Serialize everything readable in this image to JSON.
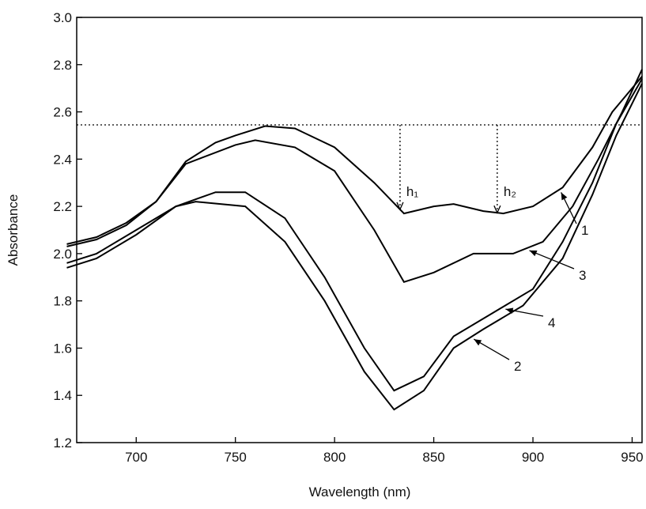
{
  "chart_data": {
    "type": "line",
    "x_label": "Wavelength (nm)",
    "y_label": "Absorbance",
    "xlim": [
      670,
      955
    ],
    "ylim": [
      1.2,
      3.0
    ],
    "xticks": [
      700,
      750,
      800,
      850,
      900,
      950
    ],
    "yticks": [
      1.2,
      1.4,
      1.6,
      1.8,
      {
        "value": 2.0,
        "label": "2.0"
      },
      2.2,
      2.4,
      2.6,
      2.8,
      {
        "value": 3.0,
        "label": "3.0"
      }
    ],
    "reference_line": 2.545,
    "annotations": [
      {
        "text": "h₁",
        "x": 833
      },
      {
        "text": "h₂",
        "x": 882
      }
    ],
    "series": [
      {
        "name": "1",
        "color": "#000000",
        "x": [
          665,
          680,
          695,
          710,
          725,
          740,
          750,
          765,
          780,
          800,
          820,
          835,
          850,
          860,
          875,
          885,
          900,
          915,
          930,
          940,
          955
        ],
        "values": [
          2.04,
          2.07,
          2.13,
          2.22,
          2.39,
          2.47,
          2.5,
          2.54,
          2.53,
          2.45,
          2.3,
          2.17,
          2.2,
          2.21,
          2.18,
          2.17,
          2.2,
          2.28,
          2.45,
          2.6,
          2.75
        ]
      },
      {
        "name": "2",
        "color": "#000000",
        "x": [
          665,
          680,
          700,
          720,
          730,
          755,
          775,
          795,
          815,
          830,
          845,
          860,
          875,
          895,
          915,
          930,
          942,
          955
        ],
        "values": [
          1.94,
          1.98,
          2.08,
          2.2,
          2.22,
          2.2,
          2.05,
          1.8,
          1.5,
          1.34,
          1.42,
          1.6,
          1.68,
          1.78,
          1.98,
          2.25,
          2.5,
          2.72
        ]
      },
      {
        "name": "3",
        "color": "#000000",
        "x": [
          665,
          680,
          695,
          710,
          725,
          750,
          760,
          780,
          800,
          820,
          835,
          850,
          870,
          890,
          905,
          920,
          933,
          945,
          955
        ],
        "values": [
          2.03,
          2.06,
          2.12,
          2.22,
          2.38,
          2.46,
          2.48,
          2.45,
          2.35,
          2.1,
          1.88,
          1.92,
          2.0,
          2.0,
          2.05,
          2.2,
          2.4,
          2.6,
          2.78
        ]
      },
      {
        "name": "4",
        "color": "#000000",
        "x": [
          665,
          680,
          700,
          720,
          740,
          755,
          775,
          795,
          815,
          830,
          845,
          860,
          880,
          900,
          915,
          930,
          942,
          955
        ],
        "values": [
          1.96,
          2.0,
          2.1,
          2.2,
          2.26,
          2.26,
          2.15,
          1.9,
          1.6,
          1.42,
          1.48,
          1.65,
          1.75,
          1.85,
          2.05,
          2.3,
          2.55,
          2.74
        ]
      }
    ]
  }
}
